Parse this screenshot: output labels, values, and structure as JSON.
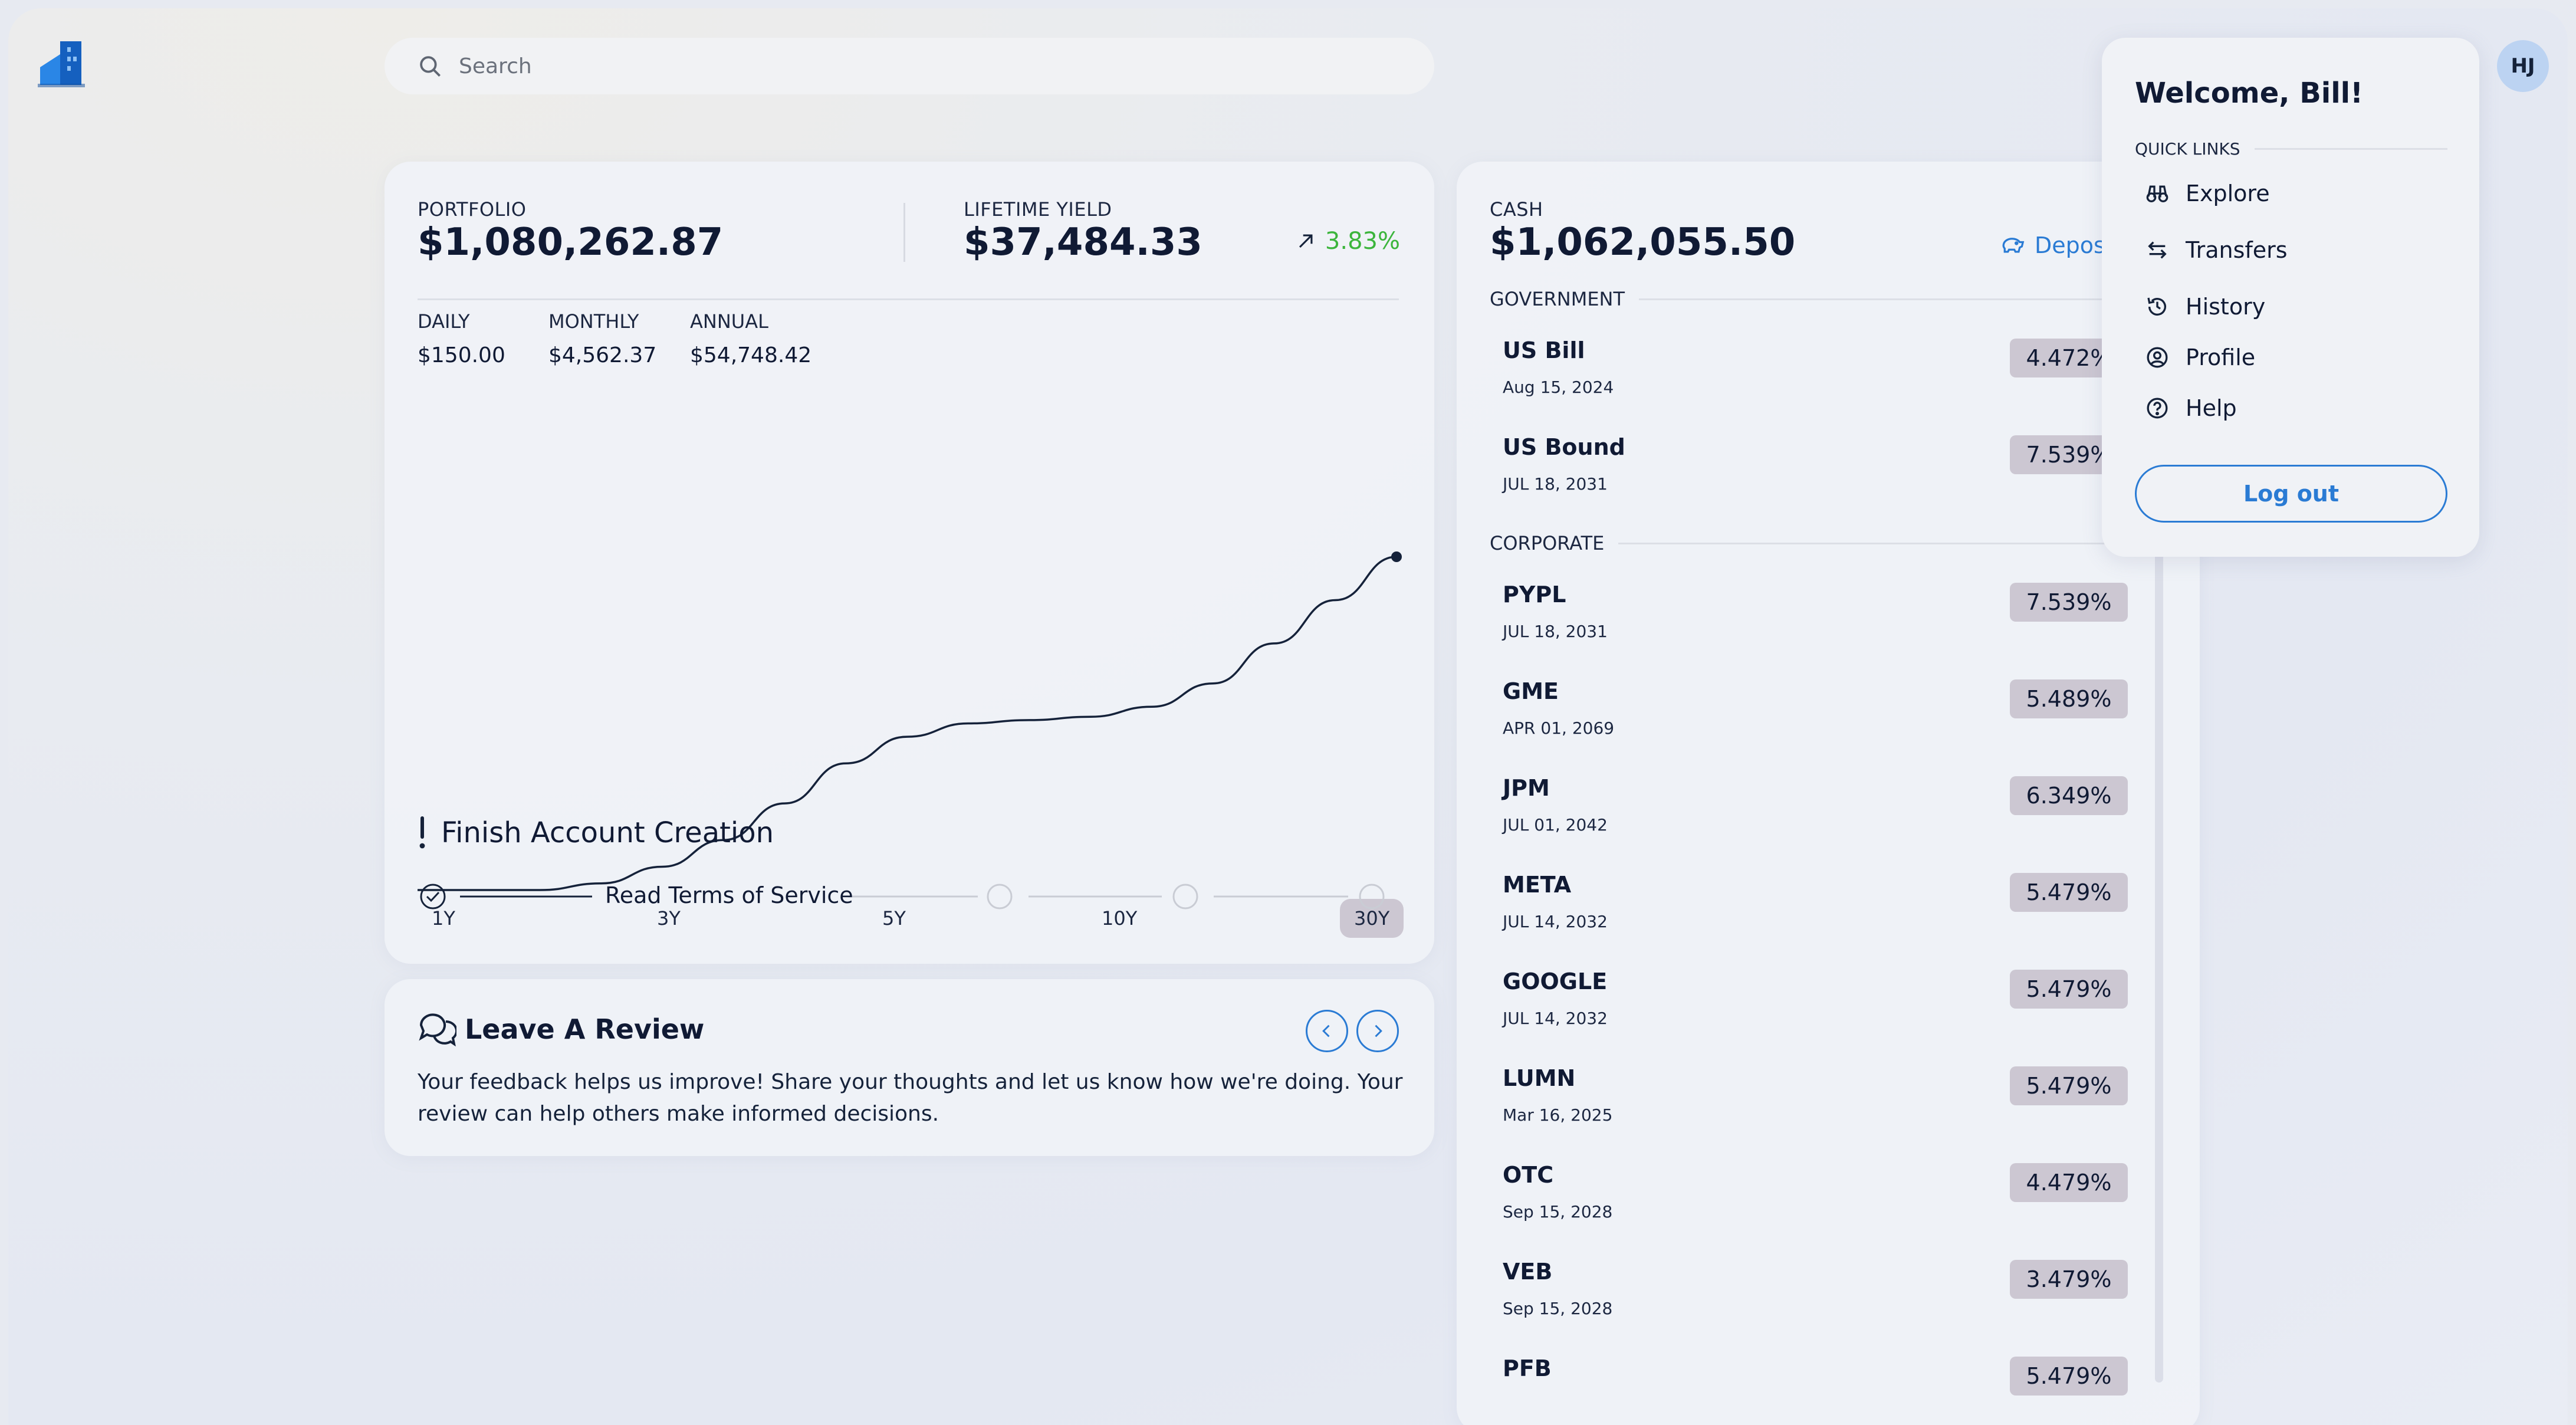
{
  "search": {
    "placeholder": "Search"
  },
  "portfolio": {
    "label": "PORTFOLIO",
    "value": "$1,080,262.87",
    "lifetime_label": "LIFETIME YIELD",
    "lifetime_value": "$37,484.33",
    "yield_pct": "3.83%",
    "daily_label": "DAILY",
    "daily_value": "$150.00",
    "monthly_label": "MONTHLY",
    "monthly_value": "$4,562.37",
    "annual_label": "ANNUAL",
    "annual_value": "$54,748.42",
    "ranges": [
      "1Y",
      "3Y",
      "5Y",
      "10Y",
      "30Y"
    ],
    "active_range": "30Y",
    "growth_curve": [
      0.0,
      0.0,
      0.0,
      0.02,
      0.07,
      0.15,
      0.26,
      0.38,
      0.46,
      0.5,
      0.51,
      0.52,
      0.55,
      0.62,
      0.74,
      0.87,
      1.0
    ]
  },
  "onboarding": {
    "title": "Finish Account Creation",
    "current_step": "Read Terms of Service"
  },
  "review": {
    "title": "Leave A Review",
    "text_line1": "Your feedback helps us improve! Share your thoughts and let us know how we're doing. Your",
    "text_line2": "review can help others make informed decisions."
  },
  "cash": {
    "label": "CASH",
    "value": "$1,062,055.50",
    "deposit_label": "Deposit",
    "government_label": "GOVERNMENT",
    "corporate_label": "CORPORATE",
    "government": [
      {
        "name": "US Bill",
        "date": "Aug 15, 2024",
        "rate": "4.472%"
      },
      {
        "name": "US Bound",
        "date": "JUL 18, 2031",
        "rate": "7.539%"
      }
    ],
    "corporate": [
      {
        "name": "PYPL",
        "date": "JUL 18, 2031",
        "rate": "7.539%"
      },
      {
        "name": "GME",
        "date": "APR 01, 2069",
        "rate": "5.489%"
      },
      {
        "name": "JPM",
        "date": "JUL 01, 2042",
        "rate": "6.349%"
      },
      {
        "name": "META",
        "date": "JUL 14, 2032",
        "rate": "5.479%"
      },
      {
        "name": "GOOGLE",
        "date": "JUL 14, 2032",
        "rate": "5.479%"
      },
      {
        "name": "LUMN",
        "date": "Mar 16, 2025",
        "rate": "5.479%"
      },
      {
        "name": "OTC",
        "date": "Sep 15, 2028",
        "rate": "4.479%"
      },
      {
        "name": "VEB",
        "date": "Sep 15, 2028",
        "rate": "3.479%"
      },
      {
        "name": "PFB",
        "date": "",
        "rate": "5.479%"
      }
    ]
  },
  "menu": {
    "welcome": "Welcome, Bill!",
    "quick_links_label": "QUICK LINKS",
    "items": [
      "Explore",
      "Transfers",
      "History",
      "Profile",
      "Help"
    ],
    "logout_label": "Log out"
  },
  "avatar": {
    "initials": "HJ"
  },
  "colors": {
    "accent": "#2a7bd4",
    "positive": "#3cb53c",
    "badge": "#ccc7d2"
  },
  "icons": {
    "logo": "building-logo-icon",
    "search": "search-icon",
    "yield": "arrow-up-right-icon",
    "deposit": "piggy-bank-icon",
    "review": "chat-bubbles-icon",
    "menu": [
      "binoculars-icon",
      "arrows-swap-icon",
      "history-icon",
      "user-circle-icon",
      "help-circle-icon"
    ]
  }
}
